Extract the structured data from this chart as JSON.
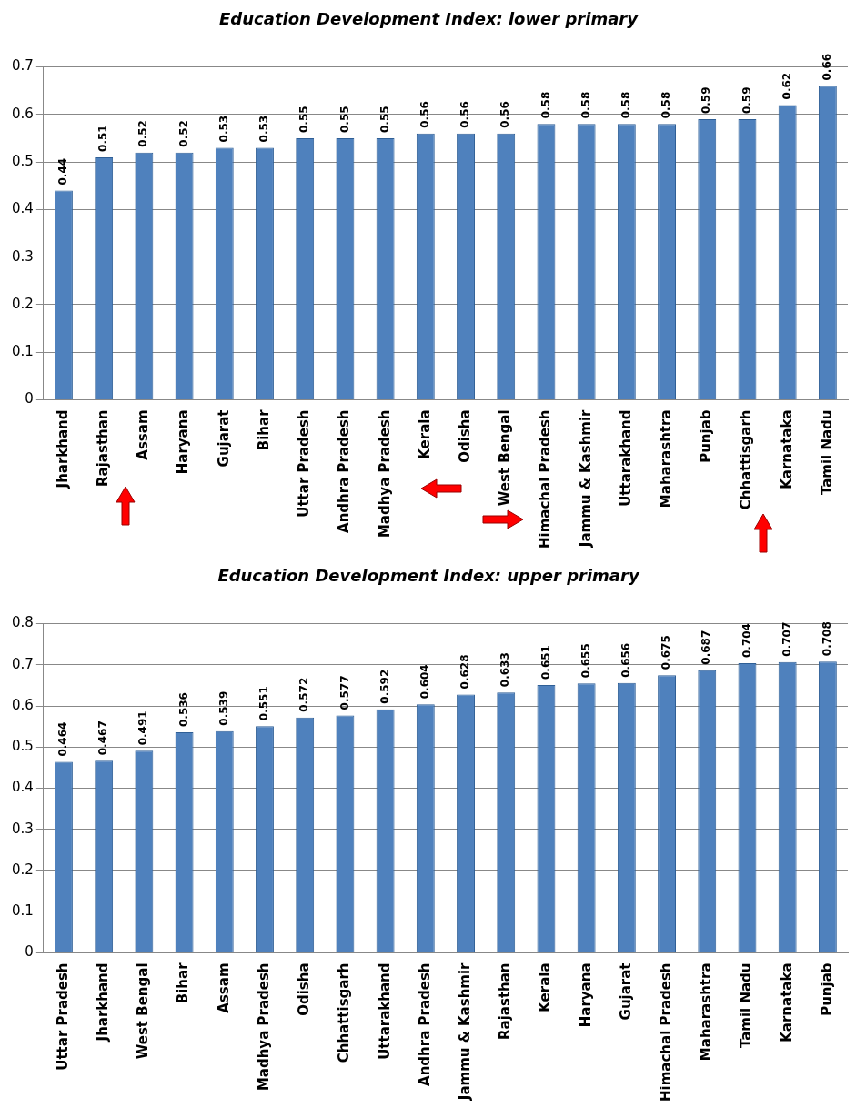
{
  "chart_data": [
    {
      "type": "bar",
      "title": "Education Development Index: lower primary",
      "categories": [
        "Jharkhand",
        "Rajasthan",
        "Assam",
        "Haryana",
        "Gujarat",
        "Bihar",
        "Uttar Pradesh",
        "Andhra Pradesh",
        "Madhya Pradesh",
        "Kerala",
        "Odisha",
        "West Bengal",
        "Himachal Pradesh",
        "Jammu & Kashmir",
        "Uttarakhand",
        "Maharashtra",
        "Punjab",
        "Chhattisgarh",
        "Karnataka",
        "Tamil Nadu"
      ],
      "values": [
        0.44,
        0.51,
        0.52,
        0.52,
        0.53,
        0.53,
        0.55,
        0.55,
        0.55,
        0.56,
        0.56,
        0.56,
        0.58,
        0.58,
        0.58,
        0.58,
        0.59,
        0.59,
        0.62,
        0.66
      ],
      "color": "#4f81bd",
      "ylim": [
        0,
        0.7
      ],
      "yticks": [
        0,
        0.1,
        0.2,
        0.3,
        0.4,
        0.5,
        0.6,
        0.7
      ],
      "grid": "y",
      "data_labels": true
    },
    {
      "type": "bar",
      "title": "Education Development Index: upper primary",
      "categories": [
        "Uttar Pradesh",
        "Jharkhand",
        "West Bengal",
        "Bihar",
        "Assam",
        "Madhya Pradesh",
        "Odisha",
        "Chhattisgarh",
        "Uttarakhand",
        "Andhra Pradesh",
        "Jammu & Kashmir",
        "Rajasthan",
        "Kerala",
        "Haryana",
        "Gujarat",
        "Himachal Pradesh",
        "Maharashtra",
        "Tamil Nadu",
        "Karnataka",
        "Punjab"
      ],
      "values": [
        0.464,
        0.467,
        0.491,
        0.536,
        0.539,
        0.551,
        0.572,
        0.577,
        0.592,
        0.604,
        0.628,
        0.633,
        0.651,
        0.655,
        0.656,
        0.675,
        0.687,
        0.704,
        0.707,
        0.708
      ],
      "color": "#4f81bd",
      "ylim": [
        0,
        0.8
      ],
      "yticks": [
        0,
        0.1,
        0.2,
        0.3,
        0.4,
        0.5,
        0.6,
        0.7,
        0.8
      ],
      "grid": "y",
      "data_labels": true
    }
  ]
}
